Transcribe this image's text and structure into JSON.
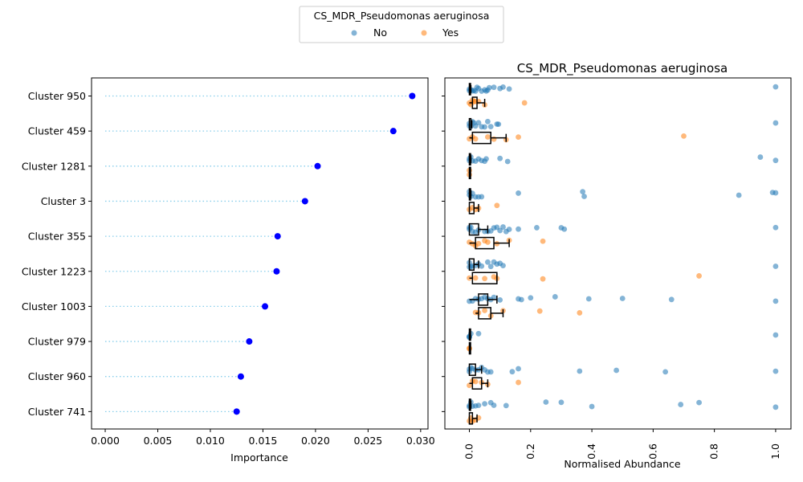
{
  "legend": {
    "title": "CS_MDR_Pseudomonas aeruginosa",
    "entries": [
      {
        "label": "No",
        "color": "#1f77b4"
      },
      {
        "label": "Yes",
        "color": "#ff7f0e"
      }
    ]
  },
  "chart_data": [
    {
      "type": "scatter",
      "subtype": "lollipop",
      "categories": [
        "Cluster 950",
        "Cluster 459",
        "Cluster 1281",
        "Cluster 3",
        "Cluster 355",
        "Cluster 1223",
        "Cluster 1003",
        "Cluster 979",
        "Cluster 960",
        "Cluster 741"
      ],
      "values": [
        0.0292,
        0.0274,
        0.0202,
        0.019,
        0.0164,
        0.0163,
        0.0152,
        0.0137,
        0.0129,
        0.0125
      ],
      "xlabel": "Importance",
      "xlim": [
        -0.0013,
        0.0307
      ],
      "xticks": [
        "0.000",
        "0.005",
        "0.010",
        "0.015",
        "0.020",
        "0.025",
        "0.030"
      ],
      "point_color": "#0000ff",
      "line_color": "#87ceeb"
    },
    {
      "type": "scatter",
      "subtype": "strip_with_box",
      "title": "CS_MDR_Pseudomonas aeruginosa",
      "xlabel": "Normalised Abundance",
      "xlim": [
        -0.08,
        1.05
      ],
      "xticks": [
        "0.0",
        "0.2",
        "0.4",
        "0.6",
        "0.8",
        "1.0"
      ],
      "series": [
        {
          "name": "No",
          "color": "#1f77b4",
          "values_by_category": [
            [
              0,
              0,
              0.005,
              0.01,
              0.015,
              0.02,
              0.025,
              0.03,
              0.04,
              0.05,
              0.055,
              0.06,
              0.065,
              0.08,
              0.1,
              0.11,
              0.13,
              1.0
            ],
            [
              0,
              0,
              0.005,
              0.01,
              0.015,
              0.02,
              0.03,
              0.04,
              0.05,
              0.06,
              0.07,
              0.09,
              0.095,
              1.0
            ],
            [
              0,
              0,
              0.005,
              0.01,
              0.02,
              0.03,
              0.04,
              0.05,
              0.055,
              0.1,
              0.125,
              0.95,
              1.0
            ],
            [
              0,
              0,
              0.005,
              0.01,
              0.02,
              0.03,
              0.04,
              0.16,
              0.37,
              0.375,
              0.88,
              0.99,
              1.0
            ],
            [
              0,
              0,
              0.005,
              0.01,
              0.02,
              0.03,
              0.05,
              0.06,
              0.07,
              0.08,
              0.09,
              0.1,
              0.11,
              0.12,
              0.13,
              0.16,
              0.22,
              0.3,
              0.31,
              1.0
            ],
            [
              0,
              0,
              0.005,
              0.01,
              0.02,
              0.03,
              0.04,
              0.06,
              0.07,
              0.08,
              0.09,
              0.1,
              0.11,
              1.0
            ],
            [
              0,
              0.01,
              0.02,
              0.03,
              0.04,
              0.05,
              0.06,
              0.07,
              0.08,
              0.1,
              0.16,
              0.17,
              0.2,
              0.28,
              0.39,
              0.5,
              0.66,
              1.0
            ],
            [
              0,
              0,
              0,
              0.005,
              0.03,
              1.0
            ],
            [
              0,
              0,
              0.005,
              0.01,
              0.02,
              0.03,
              0.04,
              0.05,
              0.06,
              0.07,
              0.14,
              0.16,
              0.36,
              0.48,
              0.64,
              1.0
            ],
            [
              0,
              0,
              0.005,
              0.01,
              0.02,
              0.03,
              0.05,
              0.07,
              0.08,
              0.12,
              0.25,
              0.3,
              0.4,
              0.69,
              0.75,
              1.0
            ]
          ]
        },
        {
          "name": "Yes",
          "color": "#ff7f0e",
          "values_by_category": [
            [
              0,
              0.005,
              0.01,
              0.015,
              0.02,
              0.03,
              0.05,
              0.18
            ],
            [
              0,
              0.01,
              0.02,
              0.06,
              0.08,
              0.12,
              0.16,
              0.7
            ],
            [
              0,
              0
            ],
            [
              0,
              0.01,
              0.02,
              0.03,
              0.09
            ],
            [
              0,
              0.01,
              0.02,
              0.03,
              0.05,
              0.06,
              0.09,
              0.13,
              0.24
            ],
            [
              0,
              0.02,
              0.05,
              0.08,
              0.09,
              0.24,
              0.75
            ],
            [
              0.02,
              0.03,
              0.05,
              0.07,
              0.11,
              0.23,
              0.36
            ],
            [
              0,
              0
            ],
            [
              0,
              0.01,
              0.02,
              0.04,
              0.06,
              0.16
            ],
            [
              0,
              0.005,
              0.01,
              0.02,
              0.03
            ]
          ]
        }
      ],
      "boxes": {
        "No": [
          {
            "q1": 0.0,
            "q3": 0.003,
            "wlo": 0.0,
            "whi": 0.005
          },
          {
            "q1": 0.0,
            "q3": 0.005,
            "wlo": 0.0,
            "whi": 0.008
          },
          {
            "q1": 0.0,
            "q3": 0.003,
            "wlo": 0.0,
            "whi": 0.005
          },
          {
            "q1": 0.0,
            "q3": 0.003,
            "wlo": 0.0,
            "whi": 0.005
          },
          {
            "q1": 0.0,
            "q3": 0.03,
            "wlo": 0.0,
            "whi": 0.06
          },
          {
            "q1": 0.0,
            "q3": 0.015,
            "wlo": 0.0,
            "whi": 0.03
          },
          {
            "q1": 0.03,
            "q3": 0.06,
            "wlo": 0.0,
            "whi": 0.09
          },
          {
            "q1": 0.0,
            "q3": 0.0,
            "wlo": 0.0,
            "whi": 0.0
          },
          {
            "q1": 0.0,
            "q3": 0.02,
            "wlo": 0.0,
            "whi": 0.04
          },
          {
            "q1": 0.0,
            "q3": 0.003,
            "wlo": 0.0,
            "whi": 0.005
          }
        ],
        "Yes": [
          {
            "q1": 0.01,
            "q3": 0.025,
            "wlo": 0.0,
            "whi": 0.05
          },
          {
            "q1": 0.01,
            "q3": 0.07,
            "wlo": 0.0,
            "whi": 0.12
          },
          {
            "q1": 0.0,
            "q3": 0.0,
            "wlo": 0.0,
            "whi": 0.0
          },
          {
            "q1": 0.0,
            "q3": 0.015,
            "wlo": 0.0,
            "whi": 0.03
          },
          {
            "q1": 0.02,
            "q3": 0.08,
            "wlo": 0.0,
            "whi": 0.13
          },
          {
            "q1": 0.01,
            "q3": 0.09,
            "wlo": 0.0,
            "whi": 0.09
          },
          {
            "q1": 0.03,
            "q3": 0.07,
            "wlo": 0.02,
            "whi": 0.11
          },
          {
            "q1": 0.0,
            "q3": 0.0,
            "wlo": 0.0,
            "whi": 0.0
          },
          {
            "q1": 0.01,
            "q3": 0.04,
            "wlo": 0.0,
            "whi": 0.06
          },
          {
            "q1": 0.0,
            "q3": 0.01,
            "wlo": 0.0,
            "whi": 0.025
          }
        ]
      }
    }
  ]
}
